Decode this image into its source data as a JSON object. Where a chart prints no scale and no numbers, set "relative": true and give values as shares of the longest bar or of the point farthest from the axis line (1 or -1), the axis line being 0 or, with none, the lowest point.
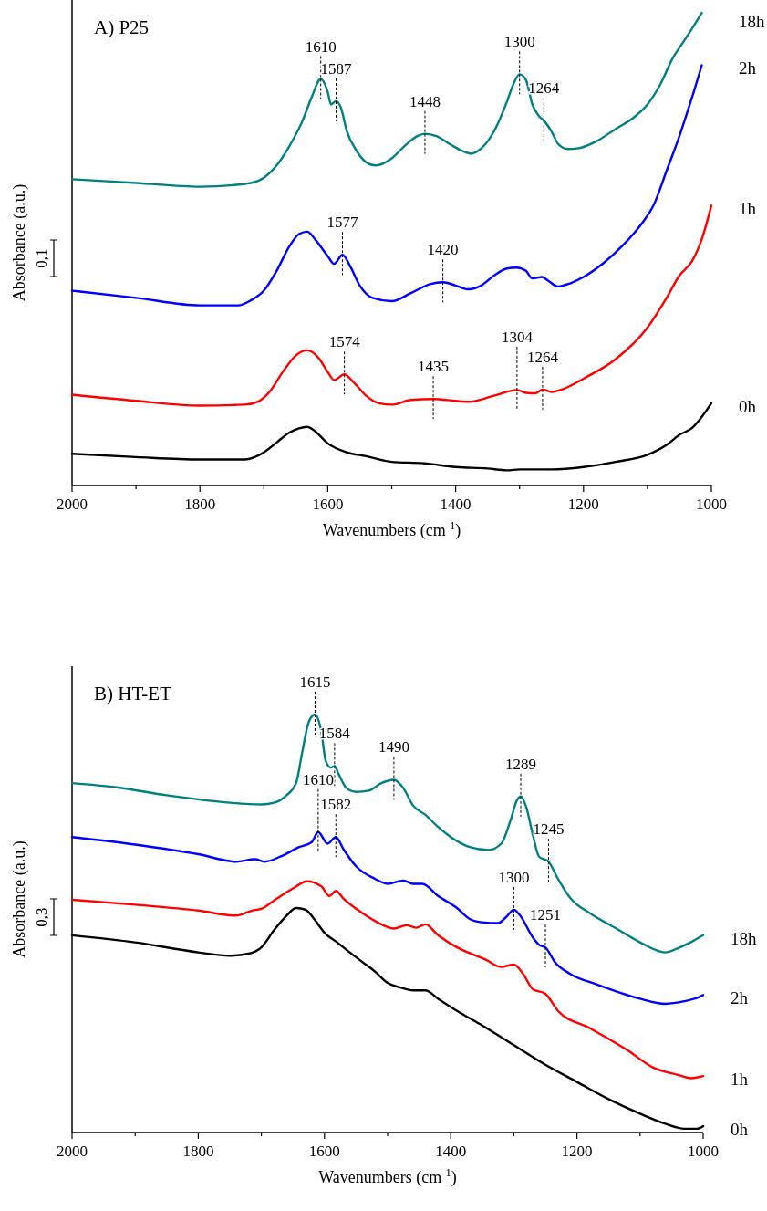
{
  "chart_data": [
    {
      "type": "line",
      "title": "A) P25",
      "xlabel": "Wavenumbers (cm$^{-1}$)",
      "ylabel": "Absorbance (a.u.)",
      "relative": true,
      "xlim": [
        2000,
        1000
      ],
      "xticks": [
        2000,
        {
          "value": 1900,
          "label": null
        },
        1800,
        {
          "value": 1700,
          "label": null
        },
        1600,
        {
          "value": 1500,
          "label": null
        },
        1400,
        {
          "value": 1300,
          "label": null
        },
        1200,
        {
          "value": 1100,
          "label": null
        },
        1000
      ],
      "series": [
        {
          "name": "18h",
          "color": "#008080",
          "x": [
            2000,
            1900,
            1800,
            1720,
            1700,
            1680,
            1660,
            1640,
            1625,
            1611,
            1600,
            1595,
            1587,
            1580,
            1570,
            1555,
            1540,
            1525,
            1500,
            1480,
            1460,
            1448,
            1430,
            1410,
            1390,
            1375,
            1360,
            1340,
            1320,
            1310,
            1300,
            1290,
            1280,
            1270,
            1262,
            1250,
            1240,
            1225,
            1210,
            1180,
            1150,
            1120,
            1100,
            1080,
            1060,
            1045,
            1030,
            1015
          ],
          "values": [
            0.648,
            0.64,
            0.632,
            0.64,
            0.651,
            0.677,
            0.718,
            0.77,
            0.822,
            0.86,
            0.832,
            0.806,
            0.813,
            0.801,
            0.749,
            0.708,
            0.684,
            0.677,
            0.692,
            0.718,
            0.739,
            0.744,
            0.739,
            0.723,
            0.708,
            0.702,
            0.713,
            0.749,
            0.811,
            0.848,
            0.87,
            0.858,
            0.806,
            0.782,
            0.772,
            0.749,
            0.723,
            0.712,
            0.713,
            0.728,
            0.754,
            0.78,
            0.806,
            0.848,
            0.905,
            0.936,
            0.967,
            1.0
          ]
        },
        {
          "name": "2h",
          "color": "#0000ff",
          "x": [
            2000,
            1900,
            1800,
            1740,
            1720,
            1700,
            1680,
            1660,
            1645,
            1632,
            1620,
            1600,
            1590,
            1577,
            1565,
            1550,
            1530,
            1500,
            1470,
            1440,
            1420,
            1400,
            1380,
            1360,
            1340,
            1320,
            1305,
            1290,
            1280,
            1265,
            1255,
            1240,
            1220,
            1200,
            1170,
            1140,
            1110,
            1090,
            1070,
            1050,
            1040,
            1030,
            1015
          ],
          "values": [
            0.412,
            0.397,
            0.381,
            0.381,
            0.392,
            0.412,
            0.454,
            0.506,
            0.532,
            0.537,
            0.521,
            0.485,
            0.469,
            0.488,
            0.464,
            0.423,
            0.397,
            0.39,
            0.407,
            0.426,
            0.43,
            0.423,
            0.415,
            0.423,
            0.444,
            0.459,
            0.461,
            0.454,
            0.438,
            0.441,
            0.433,
            0.421,
            0.428,
            0.441,
            0.469,
            0.506,
            0.552,
            0.594,
            0.666,
            0.739,
            0.78,
            0.822,
            0.889
          ]
        },
        {
          "name": "1h",
          "color": "#ff0000",
          "x": [
            2000,
            1900,
            1800,
            1730,
            1710,
            1690,
            1670,
            1650,
            1632,
            1615,
            1600,
            1590,
            1574,
            1560,
            1540,
            1520,
            1500,
            1470,
            1435,
            1400,
            1380,
            1340,
            1304,
            1290,
            1275,
            1264,
            1250,
            1230,
            1200,
            1150,
            1100,
            1070,
            1050,
            1030,
            1015,
            1000
          ],
          "values": [
            0.192,
            0.179,
            0.169,
            0.171,
            0.177,
            0.2,
            0.241,
            0.275,
            0.286,
            0.271,
            0.24,
            0.223,
            0.235,
            0.219,
            0.19,
            0.174,
            0.171,
            0.181,
            0.183,
            0.179,
            0.177,
            0.19,
            0.202,
            0.196,
            0.195,
            0.203,
            0.198,
            0.205,
            0.226,
            0.267,
            0.334,
            0.397,
            0.444,
            0.475,
            0.521,
            0.592
          ]
        },
        {
          "name": "0h",
          "color": "#000000",
          "x": [
            2000,
            1900,
            1800,
            1730,
            1700,
            1680,
            1660,
            1645,
            1632,
            1620,
            1600,
            1570,
            1540,
            1500,
            1450,
            1400,
            1350,
            1320,
            1300,
            1250,
            1200,
            1150,
            1100,
            1070,
            1050,
            1030,
            1000
          ],
          "values": [
            0.067,
            0.06,
            0.055,
            0.055,
            0.07,
            0.091,
            0.112,
            0.121,
            0.124,
            0.115,
            0.089,
            0.07,
            0.062,
            0.05,
            0.047,
            0.039,
            0.036,
            0.032,
            0.034,
            0.034,
            0.039,
            0.05,
            0.065,
            0.086,
            0.107,
            0.122,
            0.174
          ]
        }
      ],
      "annotations": [
        "0,1",
        {
          "text": "1610",
          "x": 1611,
          "y": 0.86
        },
        {
          "text": "1587",
          "x": 1587,
          "y": 0.813
        },
        {
          "text": "1448",
          "x": 1448,
          "y": 0.744
        },
        {
          "text": "1300",
          "x": 1300,
          "y": 0.87
        },
        {
          "text": "1264",
          "x": 1262,
          "y": 0.772
        },
        {
          "text": "1577",
          "x": 1577,
          "y": 0.488
        },
        {
          "text": "1420",
          "x": 1420,
          "y": 0.43
        },
        {
          "text": "1574",
          "x": 1574,
          "y": 0.235
        },
        {
          "text": "1435",
          "x": 1435,
          "y": 0.183
        },
        {
          "text": "1304",
          "x": 1304,
          "y": 0.202
        },
        {
          "text": "1264",
          "x": 1264,
          "y": 0.203
        }
      ]
    },
    {
      "type": "line",
      "title": "B) HT-ET",
      "xlabel": "Wavenumbers (cm$^{-1}$)",
      "ylabel": "Absorbance (a.u.)",
      "relative": true,
      "xlim": [
        2000,
        1000
      ],
      "xticks": [
        2000,
        {
          "value": 1900,
          "label": null
        },
        1800,
        {
          "value": 1700,
          "label": null
        },
        1600,
        {
          "value": 1500,
          "label": null
        },
        1400,
        {
          "value": 1300,
          "label": null
        },
        1200,
        {
          "value": 1100,
          "label": null
        },
        1000
      ],
      "series": [
        {
          "name": "18h",
          "color": "#008080",
          "x": [
            2000,
            1930,
            1850,
            1750,
            1700,
            1680,
            1660,
            1645,
            1635,
            1625,
            1615,
            1605,
            1598,
            1590,
            1584,
            1578,
            1565,
            1550,
            1530,
            1510,
            1490,
            1475,
            1460,
            1440,
            1420,
            1400,
            1370,
            1340,
            1320,
            1305,
            1295,
            1289,
            1280,
            1270,
            1260,
            1245,
            1230,
            1210,
            1180,
            1140,
            1100,
            1070,
            1060,
            1040,
            1020,
            1000
          ],
          "values": [
            0.836,
            0.826,
            0.807,
            0.789,
            0.785,
            0.789,
            0.807,
            0.836,
            0.912,
            0.982,
            1.0,
            0.959,
            0.889,
            0.873,
            0.877,
            0.859,
            0.824,
            0.815,
            0.818,
            0.836,
            0.844,
            0.824,
            0.783,
            0.76,
            0.731,
            0.707,
            0.683,
            0.676,
            0.691,
            0.748,
            0.795,
            0.804,
            0.777,
            0.713,
            0.66,
            0.648,
            0.607,
            0.56,
            0.525,
            0.49,
            0.455,
            0.434,
            0.431,
            0.441,
            0.455,
            0.472
          ]
        },
        {
          "name": "2h",
          "color": "#0000ff",
          "x": [
            2000,
            1900,
            1800,
            1740,
            1710,
            1695,
            1670,
            1640,
            1620,
            1610,
            1595,
            1582,
            1570,
            1550,
            1520,
            1500,
            1475,
            1460,
            1445,
            1420,
            1390,
            1370,
            1350,
            1325,
            1310,
            1300,
            1290,
            1270,
            1260,
            1250,
            1235,
            1210,
            1170,
            1100,
            1060,
            1030,
            1010,
            1000
          ],
          "values": [
            0.707,
            0.689,
            0.666,
            0.648,
            0.654,
            0.648,
            0.66,
            0.683,
            0.695,
            0.719,
            0.691,
            0.707,
            0.678,
            0.637,
            0.607,
            0.595,
            0.603,
            0.595,
            0.595,
            0.566,
            0.537,
            0.511,
            0.503,
            0.501,
            0.519,
            0.533,
            0.519,
            0.467,
            0.449,
            0.443,
            0.408,
            0.379,
            0.355,
            0.32,
            0.308,
            0.314,
            0.322,
            0.329
          ]
        },
        {
          "name": "1h",
          "color": "#ff0000",
          "x": [
            2000,
            1900,
            1800,
            1740,
            1715,
            1700,
            1680,
            1650,
            1628,
            1605,
            1592,
            1582,
            1570,
            1540,
            1515,
            1490,
            1470,
            1455,
            1440,
            1420,
            1390,
            1365,
            1345,
            1320,
            1300,
            1285,
            1270,
            1250,
            1230,
            1180,
            1120,
            1080,
            1040,
            1020,
            1000
          ],
          "values": [
            0.557,
            0.545,
            0.531,
            0.519,
            0.531,
            0.535,
            0.555,
            0.584,
            0.601,
            0.589,
            0.566,
            0.578,
            0.56,
            0.525,
            0.502,
            0.488,
            0.496,
            0.49,
            0.498,
            0.472,
            0.443,
            0.426,
            0.414,
            0.396,
            0.402,
            0.379,
            0.343,
            0.332,
            0.291,
            0.25,
            0.197,
            0.156,
            0.138,
            0.13,
            0.135
          ]
        },
        {
          "name": "0h",
          "color": "#000000",
          "x": [
            2000,
            1900,
            1800,
            1750,
            1720,
            1700,
            1680,
            1660,
            1645,
            1630,
            1615,
            1600,
            1580,
            1560,
            1540,
            1520,
            1500,
            1480,
            1460,
            1440,
            1420,
            1390,
            1350,
            1300,
            1250,
            1200,
            1150,
            1100,
            1060,
            1030,
            1010,
            1000
          ],
          "values": [
            0.472,
            0.455,
            0.431,
            0.423,
            0.428,
            0.443,
            0.484,
            0.519,
            0.537,
            0.533,
            0.508,
            0.478,
            0.455,
            0.431,
            0.408,
            0.385,
            0.358,
            0.347,
            0.34,
            0.34,
            0.32,
            0.291,
            0.256,
            0.209,
            0.162,
            0.121,
            0.08,
            0.045,
            0.021,
            0.009,
            0.009,
            0.015
          ]
        }
      ],
      "annotations": [
        "0,3",
        {
          "text": "1615",
          "x": 1615,
          "y": 1.0
        },
        {
          "text": "1584",
          "x": 1584,
          "y": 0.877
        },
        {
          "text": "1490",
          "x": 1490,
          "y": 0.844
        },
        {
          "text": "1289",
          "x": 1289,
          "y": 0.804
        },
        {
          "text": "1245",
          "x": 1245,
          "y": 0.648
        },
        {
          "text": "1610",
          "x": 1610,
          "y": 0.719
        },
        {
          "text": "1582",
          "x": 1582,
          "y": 0.707
        },
        {
          "text": "1300",
          "x": 1300,
          "y": 0.533
        },
        {
          "text": "1251",
          "x": 1250,
          "y": 0.443
        }
      ]
    }
  ]
}
